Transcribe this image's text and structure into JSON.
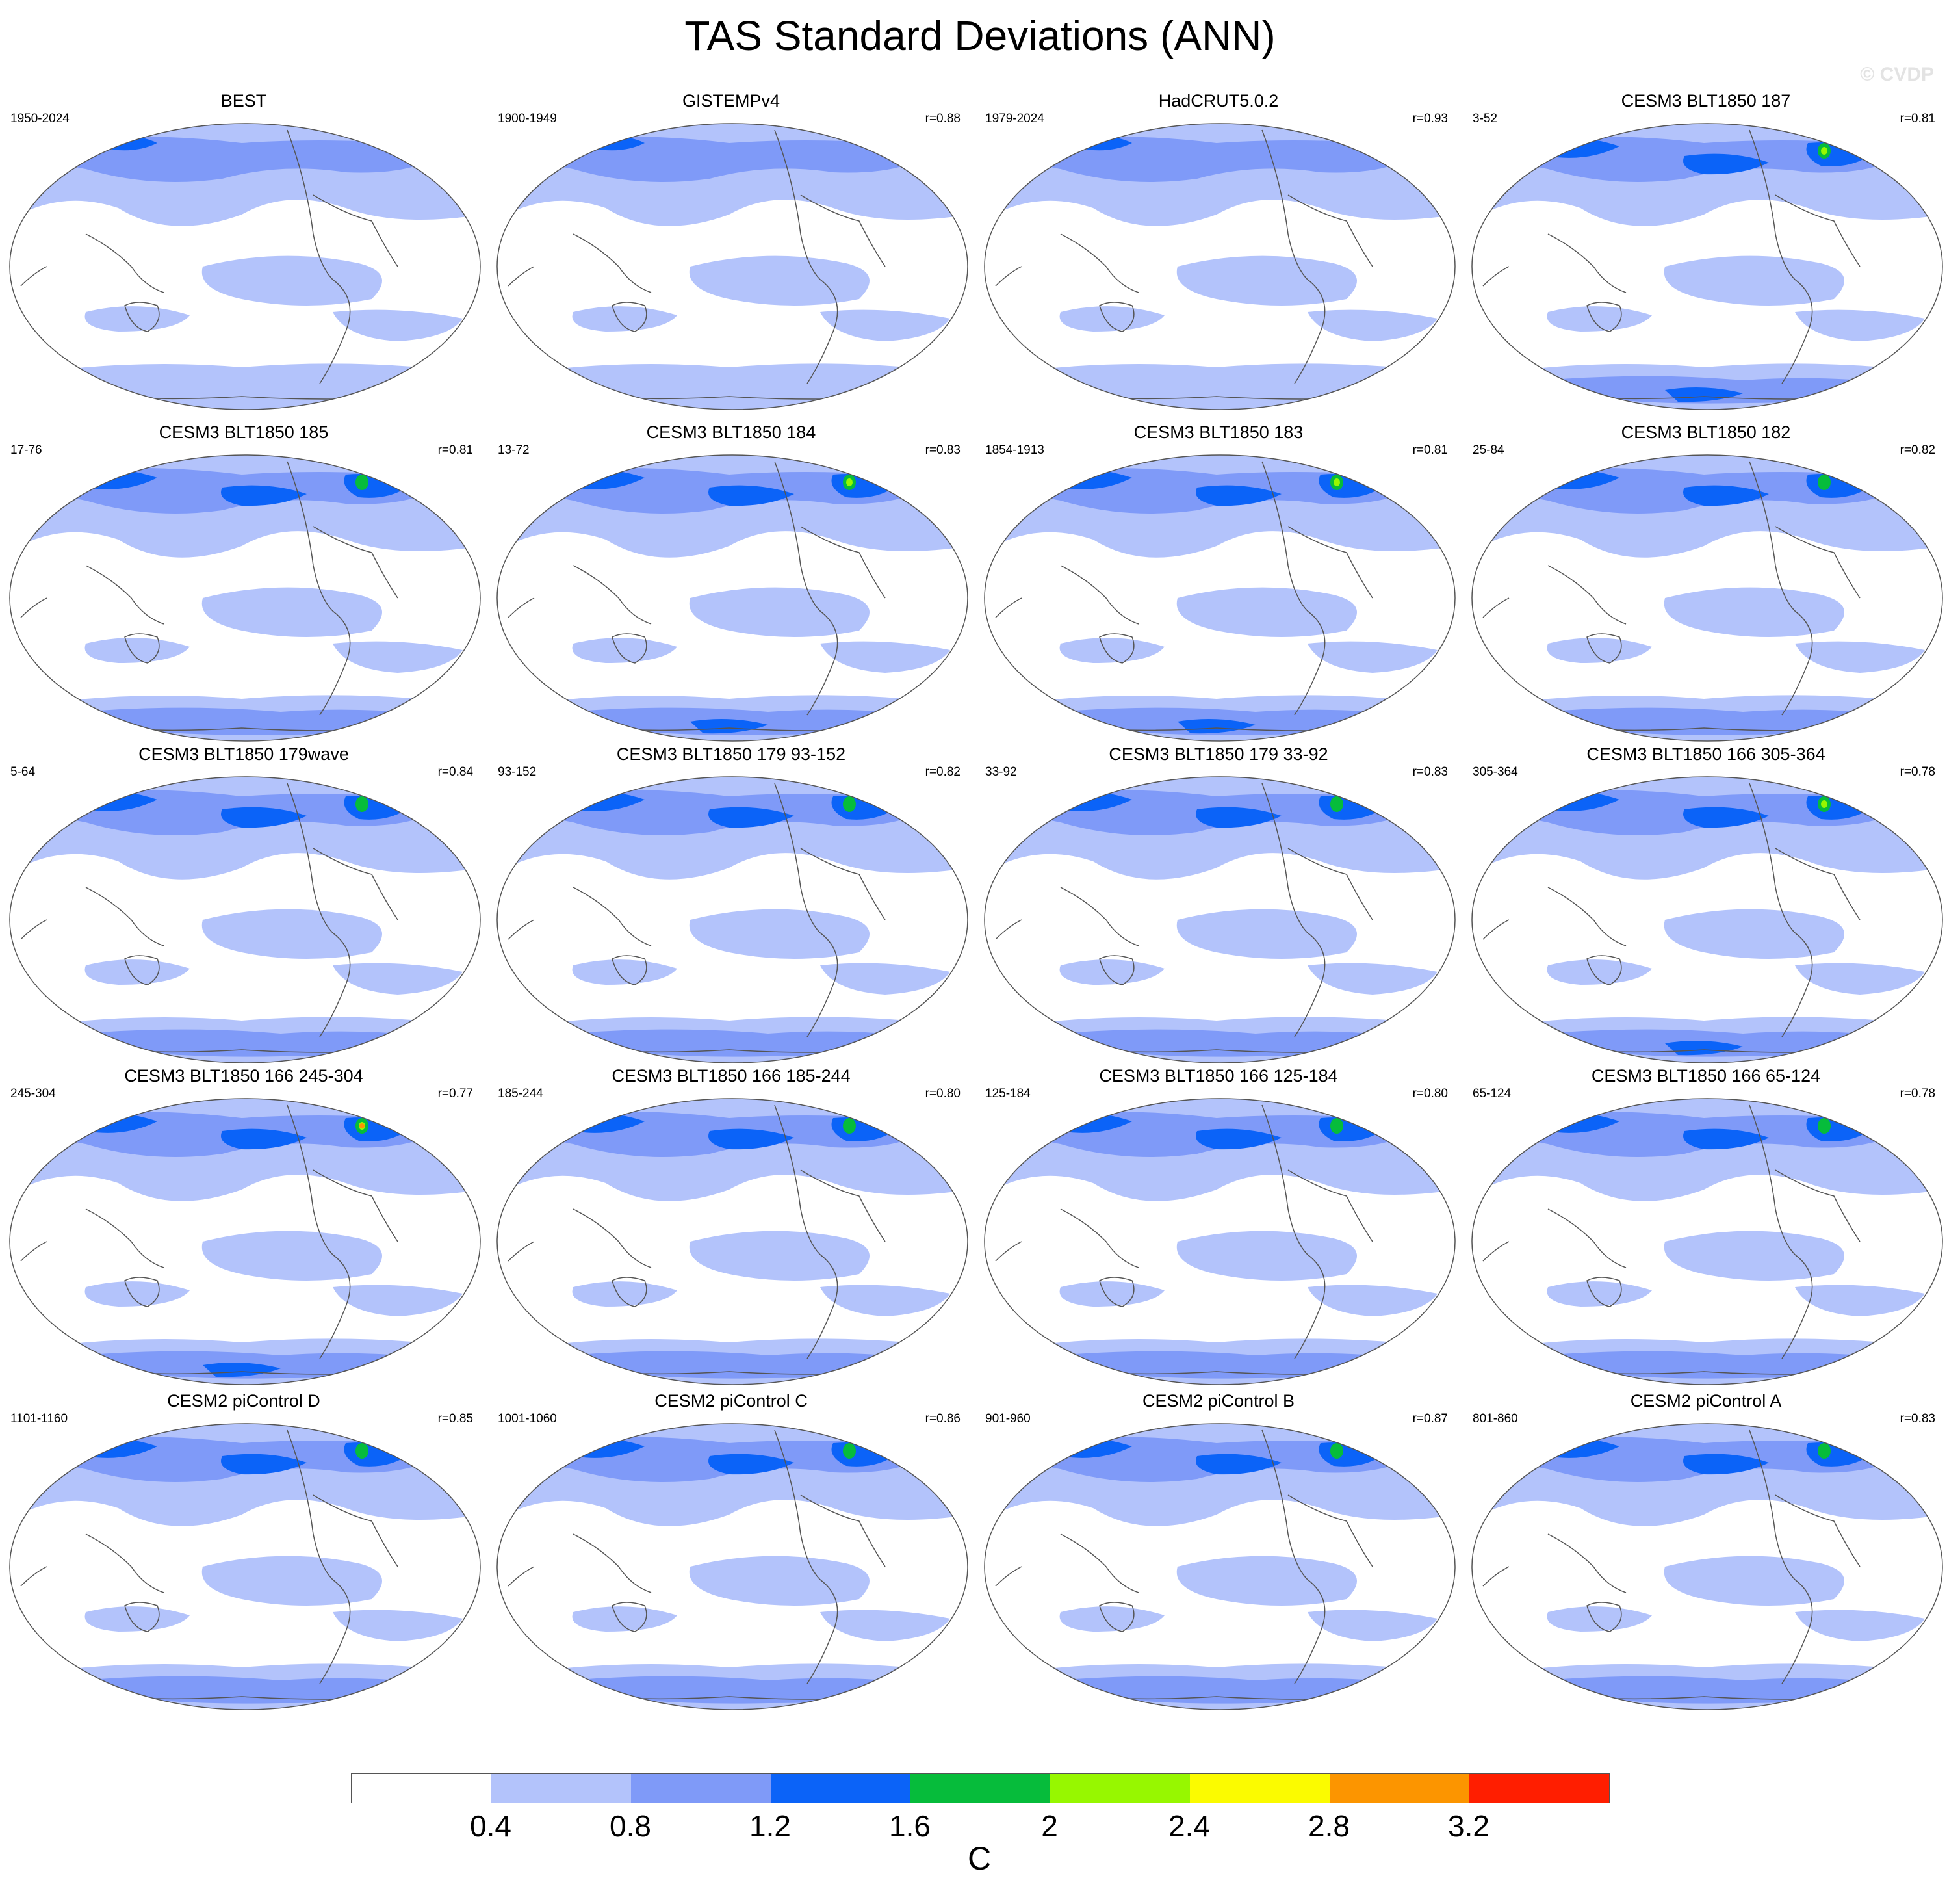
{
  "title": "TAS Standard Deviations (ANN)",
  "watermark": "© CVDP",
  "colorbar": {
    "colors": [
      "#ffffff",
      "#b3c3fb",
      "#7f9af8",
      "#0b63f8",
      "#06bc3b",
      "#97f700",
      "#fbfb00",
      "#fc9500",
      "#ff1e00"
    ],
    "labels": [
      "0.4",
      "0.8",
      "1.2",
      "1.6",
      "2",
      "2.4",
      "2.8",
      "3.2"
    ],
    "units": "C"
  },
  "panels": [
    {
      "title": "BEST",
      "years": "1950-2024",
      "corr": "",
      "lvl": 0
    },
    {
      "title": "GISTEMPv4",
      "years": "1900-1949",
      "corr": "r=0.88",
      "lvl": 0
    },
    {
      "title": "HadCRUT5.0.2",
      "years": "1979-2024",
      "corr": "r=0.93",
      "lvl": 0
    },
    {
      "title": "CESM3 BLT1850 187",
      "years": "3-52",
      "corr": "r=0.81",
      "lvl": 2
    },
    {
      "title": "CESM3 BLT1850 185",
      "years": "17-76",
      "corr": "r=0.81",
      "lvl": 1
    },
    {
      "title": "CESM3 BLT1850 184",
      "years": "13-72",
      "corr": "r=0.83",
      "lvl": 2
    },
    {
      "title": "CESM3 BLT1850 183",
      "years": "1854-1913",
      "corr": "r=0.81",
      "lvl": 2
    },
    {
      "title": "CESM3 BLT1850 182",
      "years": "25-84",
      "corr": "r=0.82",
      "lvl": 1
    },
    {
      "title": "CESM3 BLT1850 179wave",
      "years": "5-64",
      "corr": "r=0.84",
      "lvl": 1
    },
    {
      "title": "CESM3 BLT1850 179 93-152",
      "years": "93-152",
      "corr": "r=0.82",
      "lvl": 1
    },
    {
      "title": "CESM3 BLT1850 179 33-92",
      "years": "33-92",
      "corr": "r=0.83",
      "lvl": 1
    },
    {
      "title": "CESM3 BLT1850 166 305-364",
      "years": "305-364",
      "corr": "r=0.78",
      "lvl": 2
    },
    {
      "title": "CESM3 BLT1850 166 245-304",
      "years": "245-304",
      "corr": "r=0.77",
      "lvl": 3
    },
    {
      "title": "CESM3 BLT1850 166 185-244",
      "years": "185-244",
      "corr": "r=0.80",
      "lvl": 1
    },
    {
      "title": "CESM3 BLT1850 166 125-184",
      "years": "125-184",
      "corr": "r=0.80",
      "lvl": 1
    },
    {
      "title": "CESM3 BLT1850 166 65-124",
      "years": "65-124",
      "corr": "r=0.78",
      "lvl": 1
    },
    {
      "title": "CESM2 piControl D",
      "years": "1101-1160",
      "corr": "r=0.85",
      "lvl": 1
    },
    {
      "title": "CESM2 piControl C",
      "years": "1001-1060",
      "corr": "r=0.86",
      "lvl": 1
    },
    {
      "title": "CESM2 piControl B",
      "years": "901-960",
      "corr": "r=0.87",
      "lvl": 1
    },
    {
      "title": "CESM2 piControl A",
      "years": "801-860",
      "corr": "r=0.83",
      "lvl": 1
    }
  ]
}
